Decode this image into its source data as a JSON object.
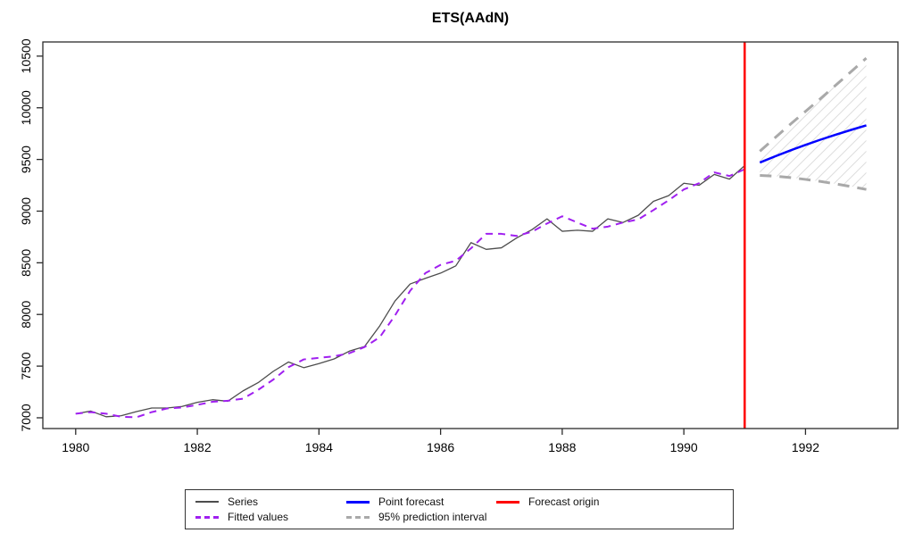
{
  "chart_data": {
    "type": "line",
    "title": "ETS(AAdN)",
    "xlabel": "",
    "ylabel": "",
    "grid": false,
    "legend_position": "bottom",
    "xlim": [
      1979.46,
      1993.52
    ],
    "ylim": [
      6896,
      10637
    ],
    "x_ticks": [
      1980,
      1982,
      1984,
      1986,
      1988,
      1990,
      1992
    ],
    "y_ticks": [
      7000,
      7500,
      8000,
      8500,
      9000,
      9500,
      10000,
      10500
    ],
    "series": {
      "label": "Series",
      "color": "#4d4d4d",
      "x": [
        1980.0,
        1980.25,
        1980.5,
        1980.75,
        1981.0,
        1981.25,
        1981.5,
        1981.75,
        1982.0,
        1982.25,
        1982.5,
        1982.75,
        1983.0,
        1983.25,
        1983.5,
        1983.75,
        1984.0,
        1984.25,
        1984.5,
        1984.75,
        1985.0,
        1985.25,
        1985.5,
        1985.75,
        1986.0,
        1986.25,
        1986.5,
        1986.75,
        1987.0,
        1987.25,
        1987.5,
        1987.75,
        1988.0,
        1988.25,
        1988.5,
        1988.75,
        1989.0,
        1989.25,
        1989.5,
        1989.75,
        1990.0,
        1990.25,
        1990.5,
        1990.75,
        1991.0
      ],
      "values": [
        7040,
        7065,
        7010,
        7020,
        7060,
        7095,
        7095,
        7110,
        7150,
        7175,
        7160,
        7260,
        7340,
        7450,
        7540,
        7485,
        7525,
        7570,
        7645,
        7690,
        7890,
        8130,
        8295,
        8350,
        8400,
        8470,
        8695,
        8630,
        8645,
        8740,
        8820,
        8925,
        8805,
        8815,
        8805,
        8925,
        8890,
        8960,
        9095,
        9150,
        9270,
        9250,
        9355,
        9310,
        9440
      ]
    },
    "fitted": {
      "label": "Fitted values",
      "color": "#a020f0",
      "x": [
        1980.0,
        1980.25,
        1980.5,
        1980.75,
        1981.0,
        1981.25,
        1981.5,
        1981.75,
        1982.0,
        1982.25,
        1982.5,
        1982.75,
        1983.0,
        1983.25,
        1983.5,
        1983.75,
        1984.0,
        1984.25,
        1984.5,
        1984.75,
        1985.0,
        1985.25,
        1985.5,
        1985.75,
        1986.0,
        1986.25,
        1986.5,
        1986.75,
        1987.0,
        1987.25,
        1987.5,
        1987.75,
        1988.0,
        1988.25,
        1988.5,
        1988.75,
        1989.0,
        1989.25,
        1989.5,
        1989.75,
        1990.0,
        1990.25,
        1990.5,
        1990.75,
        1991.0
      ],
      "values": [
        7040,
        7055,
        7040,
        7010,
        7005,
        7055,
        7090,
        7100,
        7125,
        7155,
        7165,
        7185,
        7270,
        7370,
        7490,
        7565,
        7580,
        7595,
        7625,
        7685,
        7780,
        7990,
        8230,
        8400,
        8480,
        8520,
        8640,
        8780,
        8780,
        8760,
        8800,
        8880,
        8950,
        8890,
        8830,
        8850,
        8890,
        8920,
        9010,
        9105,
        9210,
        9270,
        9375,
        9340,
        9405
      ]
    },
    "forecast": {
      "label": "Point forecast",
      "color": "#0000ff",
      "x": [
        1991.25,
        1991.5,
        1991.75,
        1992.0,
        1992.25,
        1992.5,
        1992.75,
        1993.0
      ],
      "values": [
        9470,
        9530,
        9587,
        9641,
        9692,
        9740,
        9786,
        9830
      ]
    },
    "interval": {
      "label": "95% prediction interval",
      "color": "#a9a9a9",
      "hatch_color": "#dedede",
      "x": [
        1991.25,
        1991.5,
        1991.75,
        1992.0,
        1992.25,
        1992.5,
        1992.75,
        1993.0
      ],
      "upper": [
        9580,
        9710,
        9840,
        9965,
        10090,
        10220,
        10350,
        10480
      ],
      "lower": [
        9345,
        9338,
        9325,
        9307,
        9287,
        9263,
        9238,
        9210
      ]
    },
    "origin": {
      "label": "Forecast origin",
      "color": "#ff0000",
      "x": 1991
    }
  }
}
